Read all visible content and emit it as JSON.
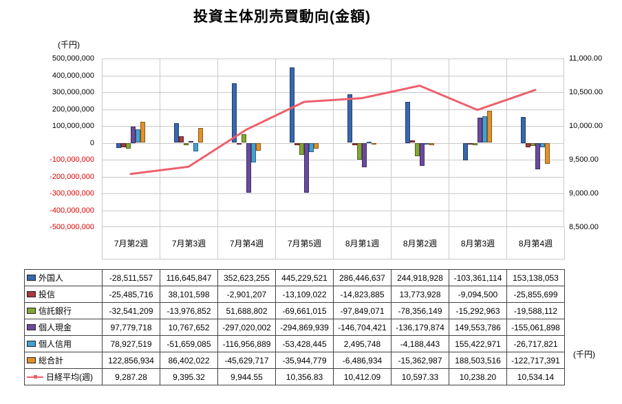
{
  "title": "投資主体別売買動向(金額)",
  "left_axis_unit": "(千円)",
  "right_axis_unit": "(千円)",
  "chart_data": {
    "type": "bar",
    "subtype": "grouped-bars-with-line-overlay",
    "title": "投資主体別売買動向(金額)",
    "grid": true,
    "legend_position": "table-below",
    "categories": [
      "7月第2週",
      "7月第3週",
      "7月第4週",
      "7月第5週",
      "8月第1週",
      "8月第2週",
      "8月第3週",
      "8月第4週"
    ],
    "left_axis": {
      "unit": "(千円)",
      "min": -500000000,
      "max": 500000000,
      "step": 100000000,
      "tick_labels": [
        "500,000,000",
        "400,000,000",
        "300,000,000",
        "200,000,000",
        "100,000,000",
        "0",
        "-100,000,000",
        "-200,000,000",
        "-300,000,000",
        "-400,000,000",
        "-500,000,000"
      ]
    },
    "right_axis": {
      "unit": "(千円)",
      "min": 8500,
      "max": 11000,
      "step": 500,
      "tick_labels": [
        "11,000.00",
        "10,500.00",
        "10,000.00",
        "9,500.00",
        "9,000.00",
        "8,500.00"
      ]
    },
    "bar_series": [
      {
        "key": "foreigners",
        "name": "外国人",
        "color": "#3867ad",
        "values": [
          -28511557,
          116645847,
          352623255,
          445229521,
          286446637,
          244918928,
          -103361114,
          153138053
        ]
      },
      {
        "key": "investment-trusts",
        "name": "投信",
        "color": "#a8393d",
        "values": [
          -25485716,
          38101598,
          -2901207,
          -13109022,
          -14823885,
          13773928,
          -9094500,
          -25855699
        ]
      },
      {
        "key": "trust-banks",
        "name": "信託銀行",
        "color": "#84a636",
        "values": [
          -32541209,
          -13976852,
          51688802,
          -69661015,
          -97849071,
          -78356149,
          -15292963,
          -19588112
        ]
      },
      {
        "key": "individual-cash",
        "name": "個人現金",
        "color": "#6a4a9d",
        "values": [
          97779718,
          10767652,
          -297020002,
          -294869939,
          -146704421,
          -136179874,
          149553786,
          -155061898
        ]
      },
      {
        "key": "individual-margin",
        "name": "個人信用",
        "color": "#45a0d0",
        "values": [
          78927519,
          -51659085,
          -116956889,
          -53428445,
          2495748,
          -4188443,
          155422971,
          -26717821
        ]
      },
      {
        "key": "total",
        "name": "総合計",
        "color": "#e2912c",
        "values": [
          122856934,
          86402022,
          -45629717,
          -35944779,
          -6486934,
          -15362987,
          188503516,
          -122717391
        ]
      }
    ],
    "line_series": {
      "key": "nikkei",
      "name": "日経平均(週)",
      "color": "#ed5f6b",
      "values": [
        9287.28,
        9395.32,
        9944.55,
        10356.83,
        10412.09,
        10597.33,
        10238.2,
        10534.14
      ]
    }
  },
  "table": {
    "rows": [
      {
        "label": "外国人",
        "marker": "bar",
        "values": [
          "-28,511,557",
          "116,645,847",
          "352,623,255",
          "445,229,521",
          "286,446,637",
          "244,918,928",
          "-103,361,114",
          "153,138,053"
        ]
      },
      {
        "label": "投信",
        "marker": "bar",
        "values": [
          "-25,485,716",
          "38,101,598",
          "-2,901,207",
          "-13,109,022",
          "-14,823,885",
          "13,773,928",
          "-9,094,500",
          "-25,855,699"
        ]
      },
      {
        "label": "信託銀行",
        "marker": "bar",
        "values": [
          "-32,541,209",
          "-13,976,852",
          "51,688,802",
          "-69,661,015",
          "-97,849,071",
          "-78,356,149",
          "-15,292,963",
          "-19,588,112"
        ]
      },
      {
        "label": "個人現金",
        "marker": "bar",
        "values": [
          "97,779,718",
          "10,767,652",
          "-297,020,002",
          "-294,869,939",
          "-146,704,421",
          "-136,179,874",
          "149,553,786",
          "-155,061,898"
        ]
      },
      {
        "label": "個人信用",
        "marker": "bar",
        "values": [
          "78,927,519",
          "-51,659,085",
          "-116,956,889",
          "-53,428,445",
          "2,495,748",
          "-4,188,443",
          "155,422,971",
          "-26,717,821"
        ]
      },
      {
        "label": "総合計",
        "marker": "bar",
        "values": [
          "122,856,934",
          "86,402,022",
          "-45,629,717",
          "-35,944,779",
          "-6,486,934",
          "-15,362,987",
          "188,503,516",
          "-122,717,391"
        ]
      },
      {
        "label": "日経平均(週)",
        "marker": "line",
        "values": [
          "9,287.28",
          "9,395.32",
          "9,944.55",
          "10,356.83",
          "10,412.09",
          "10,597.33",
          "10,238.20",
          "10,534.14"
        ]
      }
    ]
  }
}
